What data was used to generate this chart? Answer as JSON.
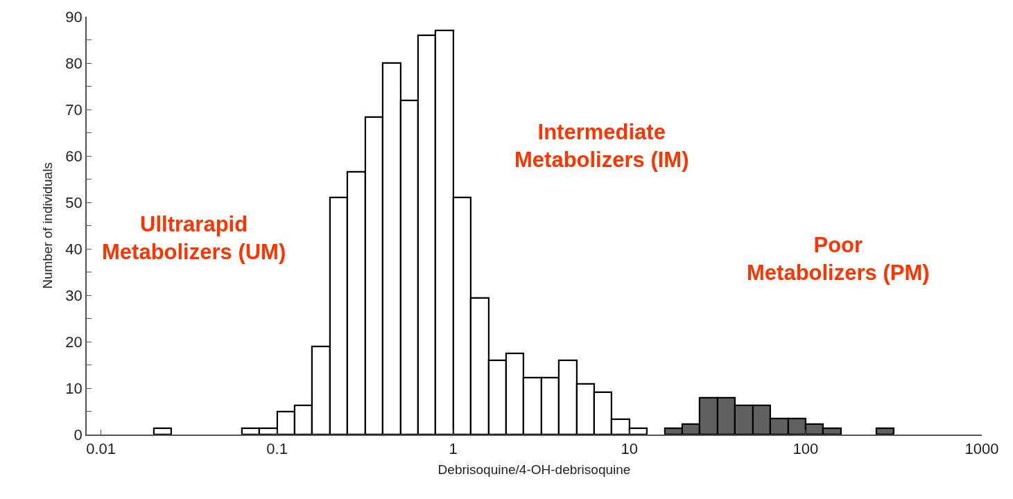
{
  "chart_data": {
    "type": "histogram",
    "xlabel": "Debrisoquine/4-OH-debrisoquine",
    "ylabel": "Number of individuals",
    "log": "x",
    "bins": [
      0.01995,
      0.02512,
      0.03162,
      0.03981,
      0.05012,
      0.0631,
      0.07943,
      0.1,
      0.1259,
      0.1585,
      0.1995,
      0.2512,
      0.3162,
      0.3981,
      0.5012,
      0.631,
      0.7943,
      1,
      1.259,
      1.585,
      1.995,
      2.512,
      3.162,
      3.981,
      5.012,
      6.31,
      7.943,
      10,
      12.59,
      15.85,
      19.95,
      25.12,
      31.62,
      39.81,
      50.12,
      63.1,
      79.43,
      100,
      125.9,
      158.5,
      199.5,
      251.2,
      316.2
    ],
    "values": [
      1.4,
      null,
      null,
      null,
      null,
      1.4,
      1.4,
      5,
      6.2,
      19,
      51,
      56.6,
      68.3,
      80,
      72,
      85.9,
      87,
      51,
      29.4,
      16,
      17.4,
      12.3,
      12.3,
      16,
      10.9,
      9.1,
      3.3,
      1.3,
      null,
      1.4,
      2.3,
      7.9,
      7.9,
      6.2,
      6.2,
      3.4,
      3.4,
      2.3,
      1.4,
      null,
      null,
      1.4
    ],
    "colors": [
      "#ffffff",
      "#ffffff",
      "#ffffff",
      "#ffffff",
      "#ffffff",
      "#ffffff",
      "#ffffff",
      "#ffffff",
      "#ffffff",
      "#ffffff",
      "#ffffff",
      "#ffffff",
      "#ffffff",
      "#ffffff",
      "#ffffff",
      "#ffffff",
      "#ffffff",
      "#ffffff",
      "#ffffff",
      "#ffffff",
      "#ffffff",
      "#ffffff",
      "#ffffff",
      "#ffffff",
      "#ffffff",
      "#ffffff",
      "#ffffff",
      "#ffffff",
      "#ffffff",
      "#606060",
      "#606060",
      "#606060",
      "#606060",
      "#606060",
      "#606060",
      "#606060",
      "#606060",
      "#606060",
      "#606060",
      "#606060",
      "#606060",
      "#606060"
    ],
    "xlim": [
      0.0083,
      1000
    ],
    "xticks": [
      0.01,
      0.1,
      1,
      10,
      100,
      1000
    ],
    "ylim": [
      0,
      90
    ],
    "yticks": [
      0,
      {
        "value": 5,
        "label": null
      },
      10,
      {
        "value": 15,
        "label": null
      },
      20,
      {
        "value": 25,
        "label": null
      },
      30,
      {
        "value": 35,
        "label": null
      },
      40,
      {
        "value": 45,
        "label": null
      },
      50,
      {
        "value": 55,
        "label": null
      },
      60,
      {
        "value": 65,
        "label": null
      },
      70,
      {
        "value": 75,
        "label": null
      },
      80,
      {
        "value": 85,
        "label": null
      },
      90
    ],
    "annotations": [
      "Ulltrarapid\nMetabolizers (UM)",
      "Intermediate\nMetabolizers (IM)",
      "Poor\nMetabolizers (PM)"
    ]
  }
}
